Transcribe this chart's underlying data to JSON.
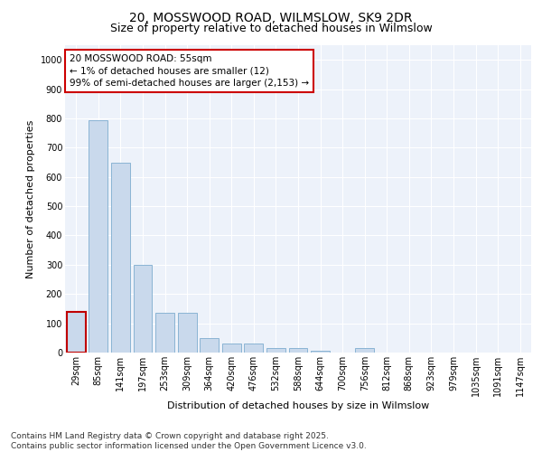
{
  "title_line1": "20, MOSSWOOD ROAD, WILMSLOW, SK9 2DR",
  "title_line2": "Size of property relative to detached houses in Wilmslow",
  "xlabel": "Distribution of detached houses by size in Wilmslow",
  "ylabel": "Number of detached properties",
  "categories": [
    "29sqm",
    "85sqm",
    "141sqm",
    "197sqm",
    "253sqm",
    "309sqm",
    "364sqm",
    "420sqm",
    "476sqm",
    "532sqm",
    "588sqm",
    "644sqm",
    "700sqm",
    "756sqm",
    "812sqm",
    "868sqm",
    "923sqm",
    "979sqm",
    "1035sqm",
    "1091sqm",
    "1147sqm"
  ],
  "values": [
    140,
    795,
    650,
    300,
    135,
    135,
    50,
    30,
    30,
    15,
    15,
    5,
    0,
    15,
    0,
    0,
    0,
    0,
    0,
    0,
    0
  ],
  "bar_color": "#c9d9ec",
  "bar_edge_color": "#8ab4d4",
  "highlight_bar_index": 0,
  "highlight_edge_color": "#c00000",
  "annotation_text": "20 MOSSWOOD ROAD: 55sqm\n← 1% of detached houses are smaller (12)\n99% of semi-detached houses are larger (2,153) →",
  "annotation_box_color": "#ffffff",
  "annotation_box_edge_color": "#cc0000",
  "ylim": [
    0,
    1050
  ],
  "yticks": [
    0,
    100,
    200,
    300,
    400,
    500,
    600,
    700,
    800,
    900,
    1000
  ],
  "bg_color": "#edf2fa",
  "footer_text": "Contains HM Land Registry data © Crown copyright and database right 2025.\nContains public sector information licensed under the Open Government Licence v3.0.",
  "title_fontsize": 10,
  "subtitle_fontsize": 9,
  "axis_label_fontsize": 8,
  "tick_fontsize": 7,
  "annotation_fontsize": 7.5,
  "footer_fontsize": 6.5
}
